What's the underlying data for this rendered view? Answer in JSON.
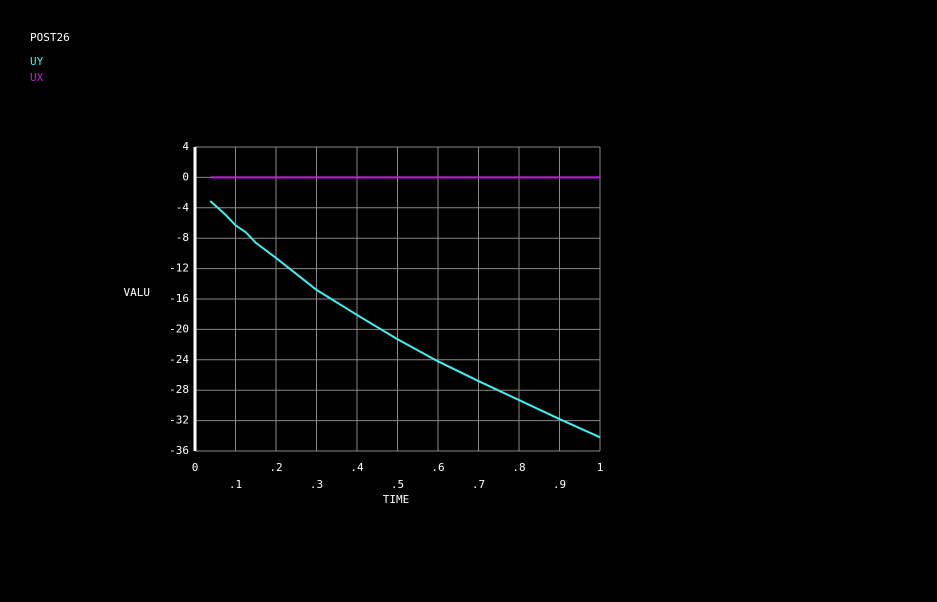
{
  "chart_data": {
    "type": "line",
    "title": "POST26",
    "xlabel": "TIME",
    "ylabel": "VALU",
    "x": [
      0.0375,
      0.075,
      0.1,
      0.125,
      0.15,
      0.2,
      0.3,
      0.4,
      0.5,
      0.6,
      0.7,
      0.8,
      0.9,
      1.0
    ],
    "series": [
      {
        "name": "UY",
        "color": "#40f0f0",
        "values": [
          -3.1,
          -4.9,
          -6.3,
          -7.2,
          -8.6,
          -10.6,
          -14.8,
          -18.1,
          -21.3,
          -24.2,
          -26.8,
          -29.3,
          -31.8,
          -34.2
        ]
      },
      {
        "name": "UX",
        "color": "#c020e0",
        "values": [
          0,
          0,
          0,
          0,
          0,
          0,
          0,
          0,
          0,
          0,
          0,
          0,
          0,
          0
        ]
      }
    ],
    "xlim": [
      0,
      1
    ],
    "xticks": [
      0,
      {
        "value": 0.1,
        "label": ".1"
      },
      {
        "value": 0.2,
        "label": ".2"
      },
      {
        "value": 0.3,
        "label": ".3"
      },
      {
        "value": 0.4,
        "label": ".4"
      },
      {
        "value": 0.5,
        "label": ".5"
      },
      {
        "value": 0.6,
        "label": ".6"
      },
      {
        "value": 0.7,
        "label": ".7"
      },
      {
        "value": 0.8,
        "label": ".8"
      },
      {
        "value": 0.9,
        "label": ".9"
      },
      1
    ],
    "ylim": [
      -36,
      4
    ],
    "yticks": [
      4,
      0,
      -4,
      -8,
      -12,
      -16,
      -20,
      -24,
      -28,
      -32,
      -36
    ],
    "grid": true
  }
}
